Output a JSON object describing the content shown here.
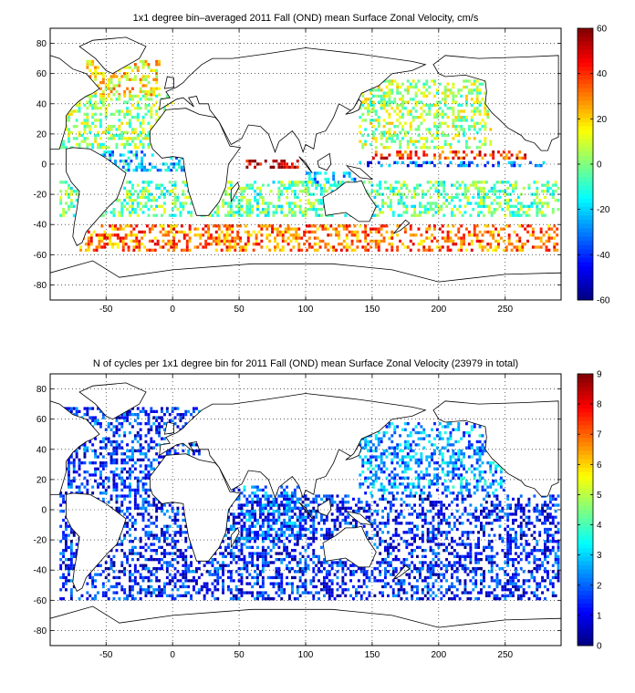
{
  "chart_data": [
    {
      "type": "heatmap",
      "title": "1x1 degree bin–averaged 2011 Fall (OND) mean Surface Zonal Velocity, cm/s",
      "xlabel": "",
      "ylabel": "",
      "xlim": [
        -92,
        292
      ],
      "ylim": [
        -90,
        90
      ],
      "xticks": [
        -50,
        0,
        50,
        100,
        150,
        200,
        250
      ],
      "yticks": [
        -80,
        -60,
        -40,
        -20,
        0,
        20,
        40,
        60,
        80
      ],
      "grid": true,
      "colorbar": {
        "min": -60,
        "max": 60,
        "ticks": [
          -60,
          -40,
          -20,
          0,
          20,
          40,
          60
        ],
        "colormap": "jet"
      },
      "regions": [
        {
          "lon": [
            -65,
            -10
          ],
          "lat": [
            45,
            68
          ],
          "value": 18
        },
        {
          "lon": [
            -85,
            0
          ],
          "lat": [
            10,
            45
          ],
          "value": 3
        },
        {
          "lon": [
            -60,
            10
          ],
          "lat": [
            -5,
            8
          ],
          "value": -22
        },
        {
          "lon": [
            55,
            95
          ],
          "lat": [
            -3,
            3
          ],
          "value": 52
        },
        {
          "lon": [
            150,
            265
          ],
          "lat": [
            3,
            9
          ],
          "value": 40
        },
        {
          "lon": [
            140,
            280
          ],
          "lat": [
            -2,
            2
          ],
          "value": -35
        },
        {
          "lon": [
            100,
            140
          ],
          "lat": [
            -15,
            -6
          ],
          "value": -25
        },
        {
          "lon": [
            -85,
            290
          ],
          "lat": [
            -35,
            -12
          ],
          "value": -3
        },
        {
          "lon": [
            -70,
            290
          ],
          "lat": [
            -58,
            -40
          ],
          "value": 32
        },
        {
          "lon": [
            140,
            240
          ],
          "lat": [
            10,
            55
          ],
          "value": 5
        }
      ]
    },
    {
      "type": "heatmap",
      "title": "N of cycles per 1x1 degree bin for 2011 Fall (OND) mean Surface Zonal Velocity (23979 in total)",
      "xlabel": "",
      "ylabel": "",
      "xlim": [
        -92,
        292
      ],
      "ylim": [
        -90,
        90
      ],
      "xticks": [
        -50,
        0,
        50,
        100,
        150,
        200,
        250
      ],
      "yticks": [
        -80,
        -60,
        -40,
        -20,
        0,
        20,
        40,
        60,
        80
      ],
      "grid": true,
      "colorbar": {
        "min": 0,
        "max": 9,
        "ticks": [
          0,
          1,
          2,
          3,
          4,
          5,
          6,
          7,
          8,
          9
        ],
        "colormap": "jet"
      },
      "total_count": 23979,
      "regions": [
        {
          "lon": [
            -85,
            20
          ],
          "lat": [
            10,
            68
          ],
          "value": 1.5
        },
        {
          "lon": [
            -85,
            290
          ],
          "lat": [
            -60,
            10
          ],
          "value": 1.3
        },
        {
          "lon": [
            140,
            250
          ],
          "lat": [
            10,
            58
          ],
          "value": 2.5
        },
        {
          "lon": [
            45,
            100
          ],
          "lat": [
            -20,
            15
          ],
          "value": 2
        }
      ]
    }
  ]
}
